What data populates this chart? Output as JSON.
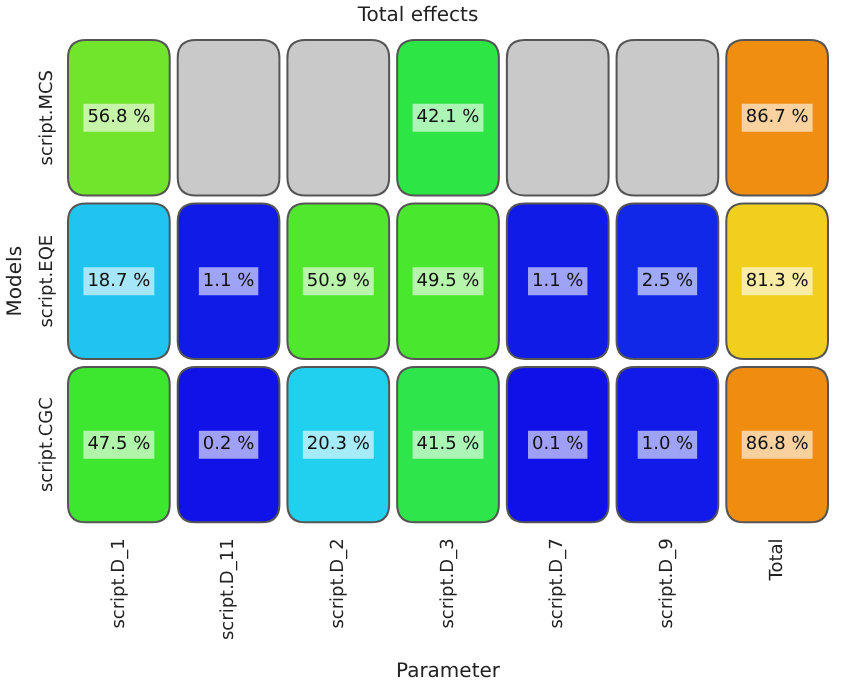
{
  "chart_data": {
    "type": "heatmap",
    "title": "Total effects",
    "xlabel": "Parameter",
    "ylabel": "Models",
    "categories": [
      "script.D_1",
      "script.D_11",
      "script.D_2",
      "script.D_3",
      "script.D_7",
      "script.D_9",
      "Total"
    ],
    "y_categories": [
      "script.MCS",
      "script.EQE",
      "script.CGC"
    ],
    "cells": [
      [
        56.8,
        null,
        null,
        42.1,
        null,
        null,
        86.7
      ],
      [
        18.7,
        1.1,
        50.9,
        49.5,
        1.1,
        2.5,
        81.3
      ],
      [
        47.5,
        0.2,
        20.3,
        41.5,
        0.1,
        1.0,
        86.8
      ]
    ],
    "cell_labels": [
      [
        "56.8 %",
        null,
        null,
        "42.1 %",
        null,
        null,
        "86.7 %"
      ],
      [
        "18.7 %",
        "1.1 %",
        "50.9 %",
        "49.5 %",
        "1.1 %",
        "2.5 %",
        "81.3 %"
      ],
      [
        "47.5 %",
        "0.2 %",
        "20.3 %",
        "41.5 %",
        "0.1 %",
        "1.0 %",
        "86.8 %"
      ]
    ]
  }
}
